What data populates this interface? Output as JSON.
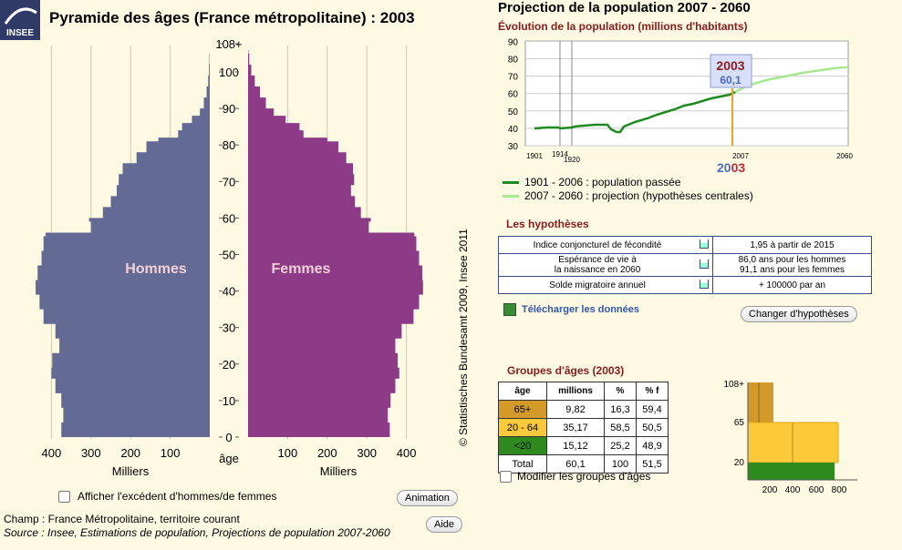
{
  "logo": {
    "text": "INSEE"
  },
  "pyramid": {
    "title": "Pyramide des âges (France métropolitaine) : 2003",
    "age_ticks": [
      "108+",
      "100",
      "90",
      "80",
      "70",
      "60",
      "50",
      "40",
      "30",
      "20",
      "10",
      "0"
    ],
    "age_label": "âge",
    "left_ticks": [
      "400",
      "300",
      "200",
      "100"
    ],
    "right_ticks": [
      "100",
      "200",
      "300",
      "400"
    ],
    "unit_label": "Milliers",
    "hommes_label": "Hommes",
    "femmes_label": "Femmes",
    "colors": {
      "hommes": "#636a94",
      "femmes": "#8d3b86"
    }
  },
  "checkbox_excedent": "Afficher l'excédent d'hommes/de femmes",
  "animation_button": "Animation",
  "aide_button": "Aide",
  "champ_text": "Champ : France Métropolitaine, territoire courant",
  "source_text": "Source : Insee, Estimations de population, Projections de population 2007-2060",
  "credit": "© Statistisches Bundesamt 2009, Insee 2011",
  "projection": {
    "title": "Projection de la population 2007 - 2060",
    "subtitle": "Évolution de la population (millions d'habitants)",
    "y_ticks": [
      "90",
      "80",
      "70",
      "60",
      "50",
      "40",
      "30"
    ],
    "x_ticks": [
      "1901",
      "1914",
      "1920",
      "2007",
      "2060"
    ],
    "selected_year": "2003",
    "selected_value": "60,1",
    "colors": {
      "past": "#1f8a1f",
      "projection": "#a8e890",
      "marker": "#f0a020"
    }
  },
  "legend": {
    "past": "1901 - 2006 : population passée",
    "projection": "2007 - 2060 : projection (hypothèses centrales)"
  },
  "hypotheses": {
    "title": "Les hypothèses",
    "rows": [
      {
        "label": "Indice conjoncturel de fécondité",
        "value": "1,95 à partir de 2015"
      },
      {
        "label1": "Espérance de vie à",
        "label2": "la naissance en 2060",
        "value1": "86,0 ans pour les hommes",
        "value2": "91,1 ans pour les femmes"
      },
      {
        "label": "Solde migratoire annuel",
        "value": "+ 100000 par an"
      }
    ],
    "download": "Télécharger les données",
    "change_button": "Changer d'hypothèses"
  },
  "groups": {
    "title": "Groupes d'âges (2003)",
    "headers": [
      "âge",
      "millions",
      "%",
      "% f"
    ],
    "rows": [
      {
        "age": "65+",
        "millions": "9,82",
        "pct": "16,3",
        "pctf": "59,4",
        "color": "#d39a2a"
      },
      {
        "age": "20 - 64",
        "millions": "35,17",
        "pct": "58,5",
        "pctf": "50,5",
        "color": "#fcc93a"
      },
      {
        "age": "<20",
        "millions": "15,12",
        "pct": "25,2",
        "pctf": "48,9",
        "color": "#2f8a1e"
      },
      {
        "age": "Total",
        "millions": "60,1",
        "pct": "100",
        "pctf": "51,5",
        "color": ""
      }
    ],
    "modify_label": "Modifier les groupes d'âges",
    "mini_y_ticks": [
      "108+",
      "65",
      "20"
    ],
    "mini_x_ticks": [
      "200",
      "400",
      "600",
      "800"
    ]
  }
}
